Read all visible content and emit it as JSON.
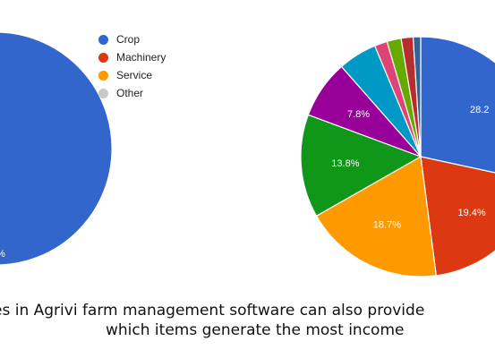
{
  "chart_data": [
    {
      "type": "pie",
      "title": "",
      "legend_position": "right",
      "slices": [
        {
          "name": "Crop",
          "value": null,
          "color": "#3366cc",
          "label": "%"
        }
      ],
      "legend": [
        {
          "name": "Crop",
          "color": "#3366cc"
        },
        {
          "name": "Machinery",
          "color": "#dc3912"
        },
        {
          "name": "Service",
          "color": "#ff9900"
        },
        {
          "name": "Other",
          "color": "#c8c8c8"
        }
      ]
    },
    {
      "type": "pie",
      "title": "",
      "slices": [
        {
          "value": 28.2,
          "color": "#3366cc",
          "label": "28.2"
        },
        {
          "value": 19.4,
          "color": "#dc3912",
          "label": "19.4%"
        },
        {
          "value": 18.7,
          "color": "#ff9900",
          "label": "18.7%"
        },
        {
          "value": 13.8,
          "color": "#109618",
          "label": "13.8%"
        },
        {
          "value": 7.8,
          "color": "#990099",
          "label": "7.8%"
        },
        {
          "value": 5.2,
          "color": "#0099c6",
          "label": ""
        },
        {
          "value": 1.7,
          "color": "#dd4477",
          "label": ""
        },
        {
          "value": 1.9,
          "color": "#66aa00",
          "label": ""
        },
        {
          "value": 1.6,
          "color": "#b82e2e",
          "label": ""
        },
        {
          "value": 1.0,
          "color": "#316395",
          "label": ""
        }
      ]
    }
  ],
  "caption": {
    "line1": "es in Agrivi farm management software can also provide",
    "line2": "which items generate the most income"
  }
}
